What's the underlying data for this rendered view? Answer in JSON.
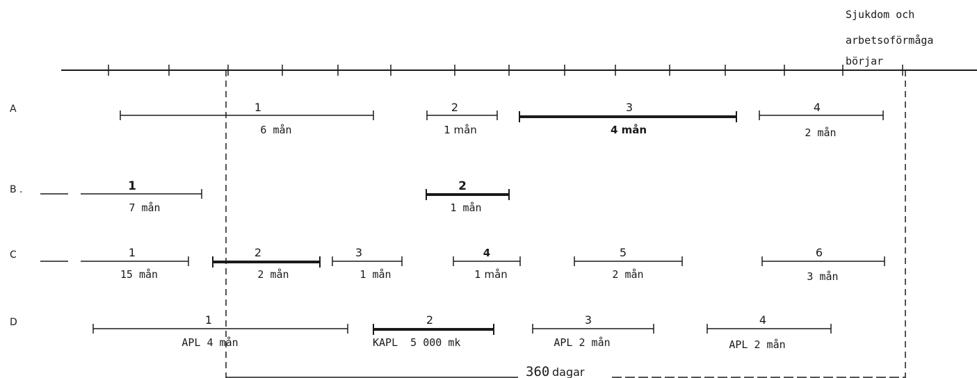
{
  "header_note": {
    "lines": [
      "Sjukdom och",
      "arbetsoförmåga",
      "börjar"
    ]
  },
  "rows": [
    {
      "label": "A",
      "periods": [
        {
          "number": "1",
          "duration": "6 mån",
          "highlighted": false
        },
        {
          "number": "2",
          "duration": "1 mån",
          "highlighted": false
        },
        {
          "number": "3",
          "duration": "4 mån",
          "highlighted": true
        },
        {
          "number": "4",
          "duration": "2 mån",
          "highlighted": false
        }
      ]
    },
    {
      "label": "B .",
      "periods": [
        {
          "number": "1",
          "duration": "7 mån",
          "highlighted": false
        },
        {
          "number": "2",
          "duration": "1 mån",
          "highlighted": true
        }
      ]
    },
    {
      "label": "C",
      "periods": [
        {
          "number": "1",
          "duration": "15 mån",
          "highlighted": false
        },
        {
          "number": "2",
          "duration": "2 mån",
          "highlighted": true
        },
        {
          "number": "3",
          "duration": "1 mån",
          "highlighted": false
        },
        {
          "number": "4",
          "duration": "1 mån",
          "highlighted": false
        },
        {
          "number": "5",
          "duration": "2 mån",
          "highlighted": false
        },
        {
          "number": "6",
          "duration": "3 mån",
          "highlighted": false
        }
      ]
    },
    {
      "label": "D",
      "periods": [
        {
          "number": "1",
          "duration": "APL 4 mån",
          "highlighted": false
        },
        {
          "number": "2",
          "duration": "KAPL  5 000 mk",
          "highlighted": true
        },
        {
          "number": "3",
          "duration": "APL 2 mån",
          "highlighted": false
        },
        {
          "number": "4",
          "duration": "APL 2 mån",
          "highlighted": false
        }
      ]
    }
  ],
  "span_label": {
    "number": "360",
    "unit": "dagar"
  }
}
